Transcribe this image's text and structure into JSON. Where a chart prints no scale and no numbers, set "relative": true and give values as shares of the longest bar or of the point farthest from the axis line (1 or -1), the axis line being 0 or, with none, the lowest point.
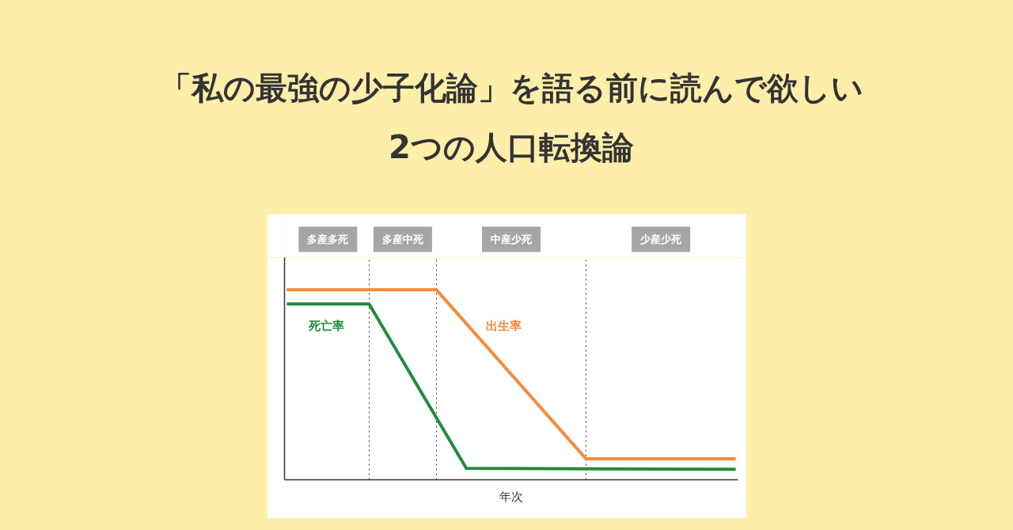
{
  "chart_data": {
    "type": "line",
    "title": "「私の最強の少子化論」を語る前に読んで欲しい\n2つの人口転換論",
    "xlabel": "年次",
    "relative": true,
    "grid": "x",
    "legend": false,
    "marker": "none",
    "line_style": "solid",
    "categories": [
      null,
      null,
      null,
      null,
      null,
      null,
      null,
      null,
      null,
      null,
      null,
      null,
      null,
      null,
      null,
      null,
      null,
      null,
      null,
      null,
      null,
      null,
      null,
      null,
      null,
      null,
      null,
      null,
      null,
      null,
      null,
      null,
      null,
      null,
      null,
      null,
      null,
      null,
      null,
      null,
      null,
      null,
      null,
      null,
      null,
      null,
      null,
      null,
      null,
      null,
      null,
      null,
      null,
      null,
      null,
      null,
      null,
      null,
      null,
      null,
      null
    ],
    "series": [
      {
        "name": "死亡率",
        "color": "#238a3f",
        "values": [
          0.925,
          null,
          null,
          null,
          null,
          null,
          null,
          null,
          null,
          null,
          null,
          0.925,
          null,
          null,
          null,
          null,
          null,
          null,
          null,
          null,
          null,
          null,
          null,
          null,
          0.06,
          null,
          null,
          null,
          null,
          null,
          null,
          null,
          null,
          null,
          null,
          null,
          null,
          null,
          null,
          null,
          null,
          null,
          null,
          null,
          null,
          null,
          null,
          null,
          null,
          null,
          null,
          null,
          null,
          null,
          null,
          null,
          null,
          null,
          null,
          null,
          0.055
        ]
      },
      {
        "name": "出生率",
        "color": "#f68b3c",
        "values": [
          1,
          null,
          null,
          null,
          null,
          null,
          null,
          null,
          null,
          null,
          null,
          null,
          null,
          null,
          null,
          null,
          null,
          null,
          null,
          null,
          1,
          null,
          null,
          null,
          null,
          null,
          null,
          null,
          null,
          null,
          null,
          null,
          null,
          null,
          null,
          null,
          null,
          null,
          null,
          null,
          0.11,
          null,
          null,
          null,
          null,
          null,
          null,
          null,
          null,
          null,
          null,
          null,
          null,
          null,
          null,
          null,
          null,
          null,
          null,
          null,
          0.11
        ]
      }
    ],
    "annotations": [
      "多産多死",
      "多産中死",
      "中産少死",
      "少産少死"
    ]
  }
}
